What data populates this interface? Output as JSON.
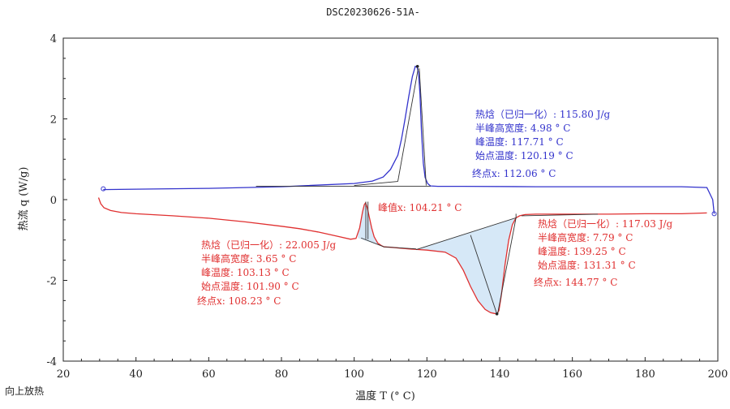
{
  "chart_data": {
    "type": "line",
    "title": "DSC20230626-51A-",
    "xlabel": "温度 T (° C)",
    "ylabel": "热流 q (W/g)",
    "footer": "向上放热",
    "xlim": [
      20,
      200
    ],
    "ylim": [
      -4,
      4
    ],
    "xticks": [
      20,
      40,
      60,
      80,
      100,
      120,
      140,
      160,
      180,
      200
    ],
    "yticks": [
      -4,
      -2,
      0,
      2,
      4
    ],
    "colors": {
      "blue": "#3333cc",
      "red": "#e03030",
      "fill": "#d6e8f7",
      "tangent": "#333333"
    },
    "series": [
      {
        "color": "#3333cc",
        "x": [
          31.0,
          40,
          60,
          80,
          100,
          105,
          108,
          110,
          112,
          113,
          114,
          115,
          116,
          116.8,
          117.3,
          117.7,
          118.1,
          118.5,
          119,
          119.5,
          120.2,
          121,
          123,
          130,
          150,
          170,
          190,
          197,
          198.6,
          199.0
        ],
        "y": [
          0.25,
          0.26,
          0.28,
          0.32,
          0.4,
          0.46,
          0.56,
          0.75,
          1.1,
          1.5,
          2.0,
          2.55,
          3.05,
          3.3,
          3.28,
          3.15,
          2.6,
          1.7,
          0.9,
          0.55,
          0.4,
          0.34,
          0.33,
          0.33,
          0.32,
          0.32,
          0.32,
          0.3,
          0.0,
          -0.35
        ]
      },
      {
        "color": "#e03030",
        "x": [
          29.7,
          30.3,
          31.2,
          33,
          36,
          40,
          50,
          60,
          70,
          80,
          85,
          90,
          95,
          99,
          100.5,
          101.5,
          102.3,
          102.8,
          103.13,
          103.6,
          104.2,
          104.8,
          105.5,
          106.5,
          107.5,
          108.2,
          110,
          115,
          120,
          125,
          128,
          130,
          132,
          134,
          136,
          137.5,
          138.6,
          139.25,
          139.8,
          140.5,
          141.5,
          142.5,
          143.5,
          144.5,
          145.5,
          147,
          150,
          160,
          170,
          180,
          190,
          197
        ],
        "y": [
          0.05,
          -0.1,
          -0.2,
          -0.27,
          -0.32,
          -0.35,
          -0.4,
          -0.46,
          -0.55,
          -0.66,
          -0.72,
          -0.8,
          -0.9,
          -0.98,
          -0.96,
          -0.7,
          -0.3,
          -0.12,
          -0.08,
          -0.2,
          -0.45,
          -0.7,
          -0.92,
          -1.08,
          -1.14,
          -1.17,
          -1.18,
          -1.22,
          -1.25,
          -1.3,
          -1.45,
          -1.75,
          -2.15,
          -2.5,
          -2.72,
          -2.8,
          -2.82,
          -2.83,
          -2.75,
          -2.35,
          -1.6,
          -1.0,
          -0.62,
          -0.45,
          -0.4,
          -0.37,
          -0.36,
          -0.36,
          -0.36,
          -0.35,
          -0.35,
          -0.33
        ]
      }
    ],
    "annotations": {
      "blue_peak": [
        "热焓（已归一化）: 115.80 J/g",
        "半峰高宽度: 4.98 ° C",
        "峰温度: 117.71 ° C",
        "始点温度: 120.19 ° C"
      ],
      "blue_end": "终点x: 112.06 ° C",
      "red_peakval": "峰值x: 104.21 ° C",
      "red_left": [
        "热焓（已归一化）: 22.005 J/g",
        "半峰高宽度: 3.65 ° C",
        "峰温度: 103.13 ° C",
        "始点温度: 101.90 ° C"
      ],
      "red_left_end": "终点x: 108.23 ° C",
      "red_right": [
        "热焓（已归一化）: 117.03 J/g",
        "半峰高宽度: 7.79 ° C",
        "峰温度: 139.25 ° C",
        "始点温度: 131.31 ° C"
      ],
      "red_right_end": "终点x: 144.77 ° C"
    }
  }
}
